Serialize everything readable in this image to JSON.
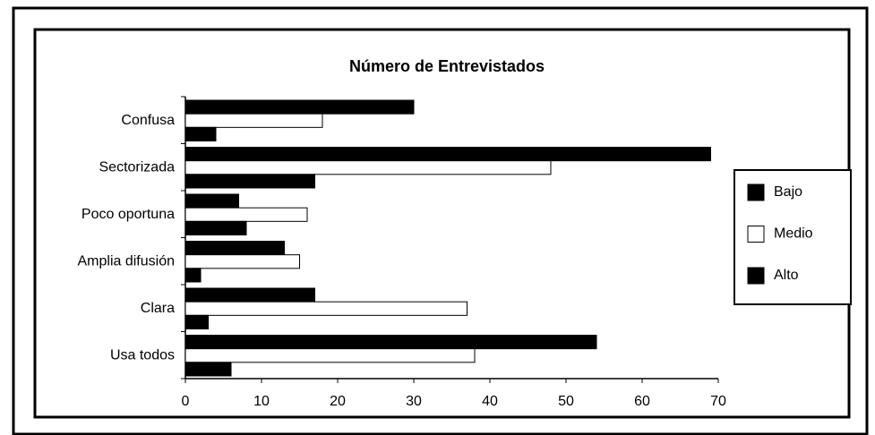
{
  "chart_data": {
    "type": "bar",
    "orientation": "horizontal",
    "title": "Número de Entrevistados",
    "categories": [
      "Confusa",
      "Sectorizada",
      "Poco oportuna",
      "Amplia difusión",
      "Clara",
      "Usa todos"
    ],
    "series": [
      {
        "name": "Bajo",
        "color": "#000000",
        "values": [
          30,
          69,
          7,
          13,
          17,
          54
        ]
      },
      {
        "name": "Medio",
        "color": "#ffffff",
        "values": [
          18,
          48,
          16,
          15,
          37,
          38
        ]
      },
      {
        "name": "Alto",
        "color": "#000000",
        "values": [
          4,
          17,
          8,
          2,
          3,
          6
        ]
      }
    ],
    "xlim": [
      0,
      70
    ],
    "xticks": [
      0,
      10,
      20,
      30,
      40,
      50,
      60,
      70
    ],
    "legend": "right"
  }
}
